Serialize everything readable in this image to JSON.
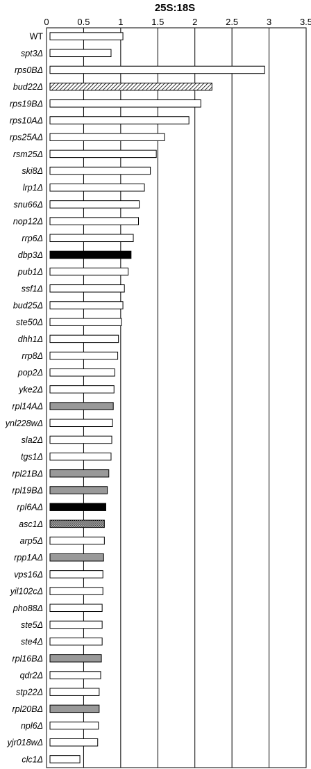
{
  "chart_data": {
    "type": "bar",
    "orientation": "horizontal",
    "title": "25S:18S",
    "xlabel": "",
    "ylabel": "",
    "xlim": [
      0,
      3.5
    ],
    "x_ticks": [
      "0",
      "0.5",
      "1",
      "1.5",
      "2",
      "2.5",
      "3",
      "3.5"
    ],
    "grid": "vertical",
    "categories": [
      "WT",
      "spt3Δ",
      "rps0BΔ",
      "bud22Δ",
      "rps19BΔ",
      "rps10AΔ",
      "rps25AΔ",
      "rsm25Δ",
      "ski8Δ",
      "lrp1Δ",
      "snu66Δ",
      "nop12Δ",
      "rrp6Δ",
      "dbp3Δ",
      "pub1Δ",
      "ssf1Δ",
      "bud25Δ",
      "ste50Δ",
      "dhh1Δ",
      "rrp8Δ",
      "pop2Δ",
      "yke2Δ",
      "rpl14AΔ",
      "ynl228wΔ",
      "sla2Δ",
      "tgs1Δ",
      "rpl21BΔ",
      "rpl19BΔ",
      "rpl6AΔ",
      "asc1Δ",
      "arp5Δ",
      "rpp1AΔ",
      "vps16Δ",
      "yil102cΔ",
      "pho88Δ",
      "ste5Δ",
      "ste4Δ",
      "rpl16BΔ",
      "qdr2Δ",
      "stp22Δ",
      "rpl20BΔ",
      "npl6Δ",
      "yjr018wΔ",
      "clc1Δ"
    ],
    "values": [
      1.03,
      0.87,
      2.94,
      2.23,
      2.08,
      1.92,
      1.59,
      1.48,
      1.4,
      1.32,
      1.25,
      1.24,
      1.17,
      1.14,
      1.1,
      1.05,
      1.03,
      1.01,
      0.97,
      0.96,
      0.92,
      0.91,
      0.9,
      0.89,
      0.88,
      0.87,
      0.84,
      0.82,
      0.8,
      0.78,
      0.78,
      0.77,
      0.76,
      0.76,
      0.75,
      0.75,
      0.75,
      0.74,
      0.73,
      0.71,
      0.71,
      0.7,
      0.69,
      0.45
    ],
    "fills": [
      "white",
      "white",
      "white",
      "hatched",
      "white",
      "white",
      "white",
      "white",
      "white",
      "white",
      "white",
      "white",
      "white",
      "black",
      "white",
      "white",
      "white",
      "white",
      "white",
      "white",
      "white",
      "white",
      "gray",
      "white",
      "white",
      "white",
      "gray",
      "gray",
      "black",
      "dotted",
      "white",
      "gray",
      "white",
      "white",
      "white",
      "white",
      "white",
      "gray",
      "white",
      "white",
      "gray",
      "white",
      "white",
      "white"
    ],
    "colors": {
      "white": "#ffffff",
      "gray": "#999999",
      "black": "#000000",
      "outline": "#000000",
      "grid": "#000000"
    }
  }
}
